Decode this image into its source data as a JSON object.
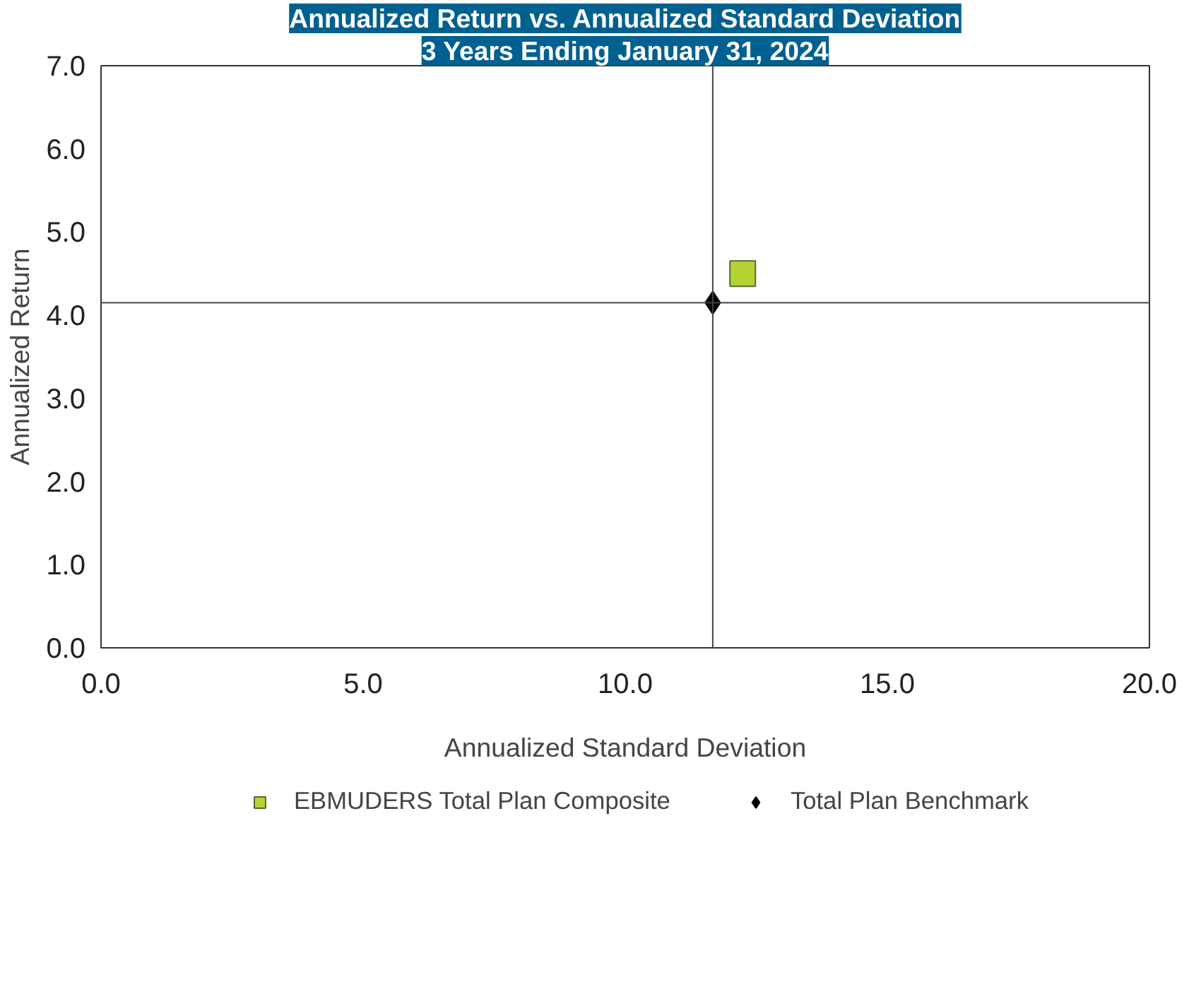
{
  "chart_data": {
    "type": "scatter",
    "title": "Annualized Return vs. Annualized Standard Deviation",
    "subtitle": "3 Years Ending January 31, 2024",
    "xlabel": "Annualized Standard Deviation",
    "ylabel": "Annualized Return",
    "series": [
      {
        "name": "EBMUDERS Total Plan Composite",
        "color": "#b5d334",
        "marker": "square",
        "x": [
          12.24
        ],
        "values": [
          4.5
        ]
      },
      {
        "name": "Total Plan Benchmark",
        "color": "#000000",
        "marker": "diamond",
        "x": [
          11.67
        ],
        "values": [
          4.15
        ]
      }
    ],
    "ref_lines": [
      {
        "axis": "x",
        "value": 11.67,
        "label": null
      },
      {
        "axis": "y",
        "value": 4.15,
        "label": null
      }
    ],
    "xlim": [
      0,
      20
    ],
    "ylim": [
      0,
      7
    ],
    "xticks": [
      {
        "value": 0,
        "label": "0.0"
      },
      {
        "value": 5,
        "label": "5.0"
      },
      {
        "value": 10,
        "label": "10.0"
      },
      {
        "value": 15,
        "label": "15.0"
      },
      {
        "value": 20,
        "label": "20.0"
      }
    ],
    "yticks": [
      {
        "value": 0,
        "label": "0.0"
      },
      {
        "value": 1,
        "label": "1.0"
      },
      {
        "value": 2,
        "label": "2.0"
      },
      {
        "value": 3,
        "label": "3.0"
      },
      {
        "value": 4,
        "label": "4.0"
      },
      {
        "value": 5,
        "label": "5.0"
      },
      {
        "value": 6,
        "label": "6.0"
      },
      {
        "value": 7,
        "label": "7.0"
      }
    ],
    "grid": false,
    "legend": "bottom"
  }
}
